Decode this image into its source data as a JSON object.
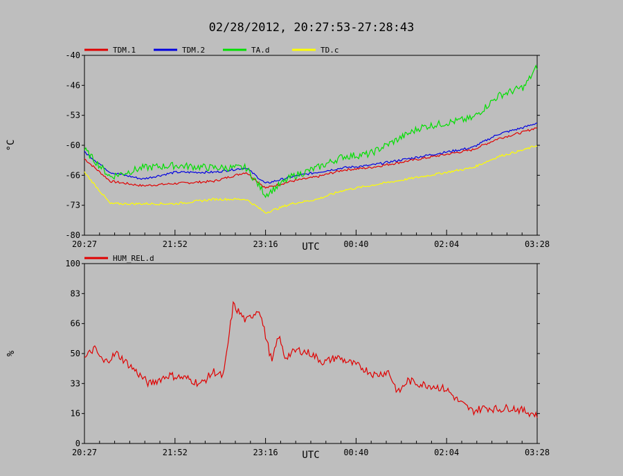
{
  "title": "02/28/2012, 20:27:53-27:28:43",
  "xlabel": "UTC",
  "x_ticks": [
    "20:27",
    "21:52",
    "23:16",
    "00:40",
    "02:04",
    "03:28"
  ],
  "chart_data": [
    {
      "type": "line",
      "ylabel": "°C",
      "ylim": [
        -80,
        -40
      ],
      "y_ticks": [
        "-40",
        "-46",
        "-53",
        "-60",
        "-66",
        "-73",
        "-80"
      ],
      "x_hours": [
        0,
        0.4,
        0.9,
        1.4,
        2.0,
        2.5,
        2.8,
        3.2,
        3.6,
        4.0,
        4.4,
        4.8,
        5.2,
        5.6,
        6.0,
        6.4,
        6.8,
        7.0
      ],
      "series": [
        {
          "name": "TDM.1",
          "color": "#e00000",
          "values": [
            -63,
            -68,
            -69,
            -68.5,
            -68,
            -66,
            -69.5,
            -68,
            -67,
            -65.5,
            -65,
            -64,
            -63,
            -62,
            -61,
            -58.5,
            -57,
            -56
          ]
        },
        {
          "name": "TDM.2",
          "color": "#0000e0",
          "values": [
            -61.5,
            -66,
            -67.5,
            -66,
            -66,
            -65,
            -68.5,
            -67,
            -66,
            -65,
            -64.5,
            -63.5,
            -62.5,
            -61.5,
            -60.5,
            -57.5,
            -56,
            -55
          ]
        },
        {
          "name": "TA.d",
          "color": "#00e000",
          "values": [
            -61,
            -67,
            -65,
            -64.5,
            -65,
            -65,
            -71,
            -67,
            -65,
            -62.5,
            -62,
            -59,
            -56,
            -55,
            -54,
            -49,
            -47,
            -42.5
          ]
        },
        {
          "name": "TD.c",
          "color": "#ffff00",
          "values": [
            -66,
            -73,
            -73,
            -73,
            -72,
            -72,
            -75,
            -73,
            -72,
            -70,
            -69,
            -68,
            -67,
            -66,
            -65,
            -62.5,
            -61,
            -60
          ]
        }
      ]
    },
    {
      "type": "line",
      "ylabel": "%",
      "ylim": [
        0,
        100
      ],
      "y_ticks": [
        "100",
        "83",
        "66",
        "50",
        "33",
        "16",
        "0"
      ],
      "x_hours": [
        0,
        0.15,
        0.3,
        0.5,
        0.8,
        1.0,
        1.3,
        1.6,
        1.8,
        2.0,
        2.15,
        2.3,
        2.5,
        2.7,
        2.9,
        3.0,
        3.1,
        3.3,
        3.5,
        3.7,
        3.9,
        4.1,
        4.3,
        4.5,
        4.7,
        4.85,
        5.0,
        5.2,
        5.4,
        5.6,
        5.8,
        6.0,
        6.2,
        6.4,
        6.6,
        6.8,
        7.0
      ],
      "series": [
        {
          "name": "HUM_REL.d",
          "color": "#e00000",
          "values": [
            47,
            53,
            45,
            50,
            40,
            33,
            38,
            36,
            33,
            40,
            37,
            77,
            68,
            75,
            45,
            60,
            48,
            52,
            50,
            45,
            48,
            45,
            42,
            38,
            40,
            28,
            35,
            33,
            32,
            30,
            23,
            18,
            20,
            19,
            20,
            18,
            16
          ]
        }
      ]
    }
  ]
}
